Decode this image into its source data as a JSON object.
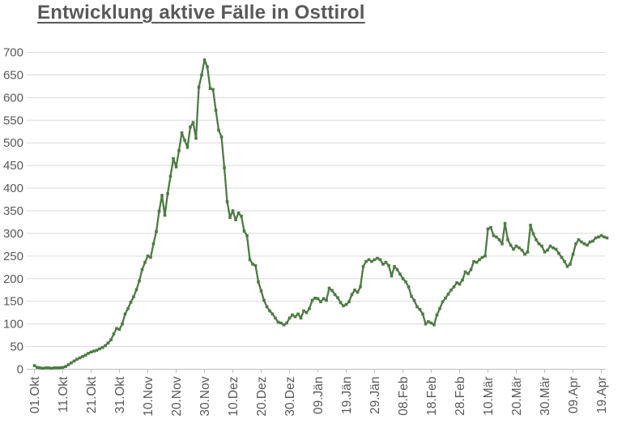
{
  "header": {
    "title": "Entwicklung aktive Fälle in Osttirol"
  },
  "chart_data": {
    "type": "line",
    "title": "Entwicklung aktive Fälle in Osttirol",
    "xlabel": "",
    "ylabel": "",
    "ylim": [
      0,
      700
    ],
    "ytick_step": 50,
    "y_tick_labels": [
      "0",
      "50",
      "100",
      "150",
      "200",
      "250",
      "300",
      "350",
      "400",
      "450",
      "500",
      "550",
      "600",
      "650",
      "700"
    ],
    "x_tick_labels": [
      "01.Okt",
      "11.Okt",
      "21.Okt",
      "31.Okt",
      "10.Nov",
      "20.Nov",
      "30.Nov",
      "10.Dez",
      "20.Dez",
      "30.Dez",
      "09.Jän",
      "19.Jän",
      "29.Jän",
      "08.Feb",
      "18.Feb",
      "28.Feb",
      "10.Mär",
      "20.Mär",
      "30.Mär",
      "09.Apr",
      "19.Apr"
    ],
    "x_interval_days": 1,
    "tick_every_points": 10,
    "grid": true,
    "legend": "none",
    "marker": "square",
    "line_color": "#4e7b44",
    "gridline_color": "#d9d9d9",
    "axis_color": "#bfbfbf",
    "label_color": "#595959",
    "values": [
      8,
      4,
      3,
      2,
      3,
      3,
      2,
      3,
      3,
      3,
      4,
      6,
      10,
      14,
      18,
      22,
      25,
      28,
      31,
      35,
      38,
      40,
      42,
      45,
      48,
      52,
      58,
      65,
      78,
      90,
      88,
      100,
      122,
      134,
      148,
      160,
      176,
      195,
      220,
      236,
      250,
      247,
      277,
      304,
      349,
      384,
      340,
      388,
      426,
      465,
      447,
      483,
      522,
      506,
      490,
      535,
      545,
      510,
      623,
      650,
      683,
      668,
      620,
      618,
      572,
      528,
      513,
      445,
      370,
      335,
      350,
      330,
      345,
      338,
      305,
      295,
      242,
      232,
      229,
      193,
      173,
      152,
      138,
      129,
      122,
      113,
      104,
      102,
      98,
      102,
      113,
      120,
      116,
      122,
      113,
      129,
      125,
      134,
      152,
      157,
      156,
      149,
      156,
      152,
      179,
      174,
      165,
      158,
      147,
      140,
      143,
      149,
      165,
      175,
      170,
      182,
      227,
      238,
      242,
      238,
      242,
      245,
      242,
      232,
      236,
      229,
      206,
      227,
      220,
      210,
      200,
      193,
      182,
      161,
      152,
      138,
      132,
      122,
      100,
      105,
      102,
      98,
      120,
      134,
      149,
      157,
      166,
      175,
      182,
      191,
      188,
      197,
      215,
      211,
      220,
      238,
      236,
      242,
      247,
      250,
      310,
      313,
      295,
      292,
      286,
      277,
      322,
      286,
      274,
      265,
      272,
      268,
      263,
      254,
      259,
      318,
      299,
      286,
      277,
      272,
      259,
      263,
      272,
      268,
      265,
      256,
      247,
      238,
      227,
      232,
      254,
      277,
      286,
      281,
      277,
      274,
      281,
      283,
      290,
      292,
      295,
      292,
      290
    ]
  }
}
